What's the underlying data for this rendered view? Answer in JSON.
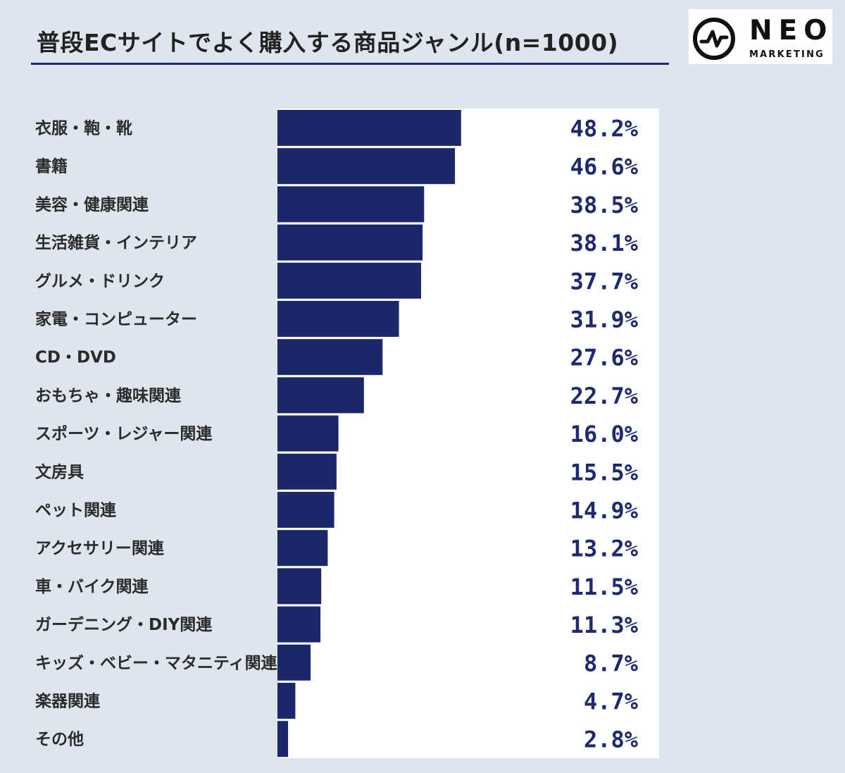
{
  "header": {
    "title": "普段ECサイトでよく購入する商品ジャンル(n=1000)"
  },
  "logo": {
    "name": "NEO",
    "sub": "MARKETING",
    "icon": "wave-circle-icon"
  },
  "colors": {
    "bar": "#1c2769",
    "value_text": "#1e2a6e",
    "panel": "#ffffff",
    "background": "#dfe5ec"
  },
  "chart_data": {
    "type": "bar",
    "orientation": "horizontal",
    "title": "普段ECサイトでよく購入する商品ジャンル(n=1000)",
    "categories": [
      "衣服・鞄・靴",
      "書籍",
      "美容・健康関連",
      "生活雑貨・インテリア",
      "グルメ・ドリンク",
      "家電・コンピューター",
      "CD・DVD",
      "おもちゃ・趣味関連",
      "スポーツ・レジャー関連",
      "文房具",
      "ペット関連",
      "アクセサリー関連",
      "車・バイク関連",
      "ガーデニング・DIY関連",
      "キッズ・ベビー・マタニティ関連",
      "楽器関連",
      "その他"
    ],
    "values": [
      48.2,
      46.6,
      38.5,
      38.1,
      37.7,
      31.9,
      27.6,
      22.7,
      16.0,
      15.5,
      14.9,
      13.2,
      11.5,
      11.3,
      8.7,
      4.7,
      2.8
    ],
    "value_labels": [
      "48.2%",
      "46.6%",
      "38.5%",
      "38.1%",
      "37.7%",
      "31.9%",
      "27.6%",
      "22.7%",
      "16.0%",
      "15.5%",
      "14.9%",
      "13.2%",
      "11.5%",
      "11.3%",
      "8.7%",
      "4.7%",
      "2.8%"
    ],
    "unit": "%",
    "xlim": [
      0,
      100
    ],
    "grid": false,
    "legend": "none"
  }
}
